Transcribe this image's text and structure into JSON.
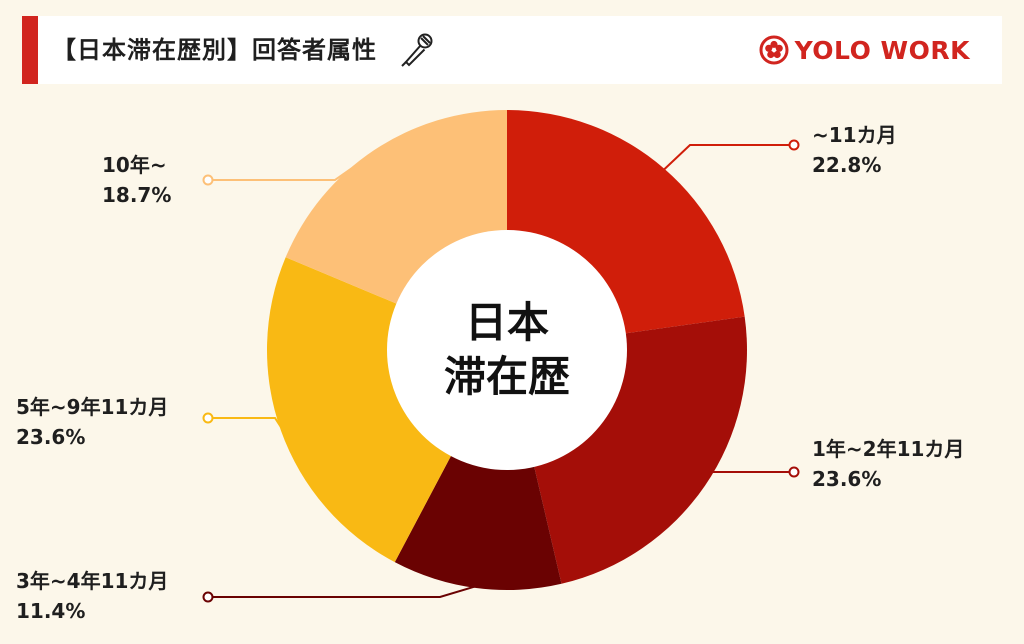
{
  "header": {
    "title": "【日本滞在歴別】回答者属性",
    "brand": "YOLO WORK",
    "accent_color": "#d1251f",
    "icon": "microphone-icon",
    "logo_icon": "yolo-logo-icon"
  },
  "chart_data": {
    "type": "pie",
    "style": "donut",
    "center_text": [
      "日本",
      "滞在歴"
    ],
    "slices": [
      {
        "label": "~11カ月",
        "value": 22.8,
        "value_label": "22.8%",
        "color": "#d01e0a"
      },
      {
        "label": "1年~2年11カ月",
        "value": 23.6,
        "value_label": "23.6%",
        "color": "#a40e08"
      },
      {
        "label": "3年~4年11カ月",
        "value": 11.4,
        "value_label": "11.4%",
        "color": "#6a0202"
      },
      {
        "label": "5年~9年11カ月",
        "value": 23.6,
        "value_label": "23.6%",
        "color": "#f9b914"
      },
      {
        "label": "10年~",
        "value": 18.7,
        "value_label": "18.7%",
        "color": "#fdc077"
      }
    ]
  }
}
